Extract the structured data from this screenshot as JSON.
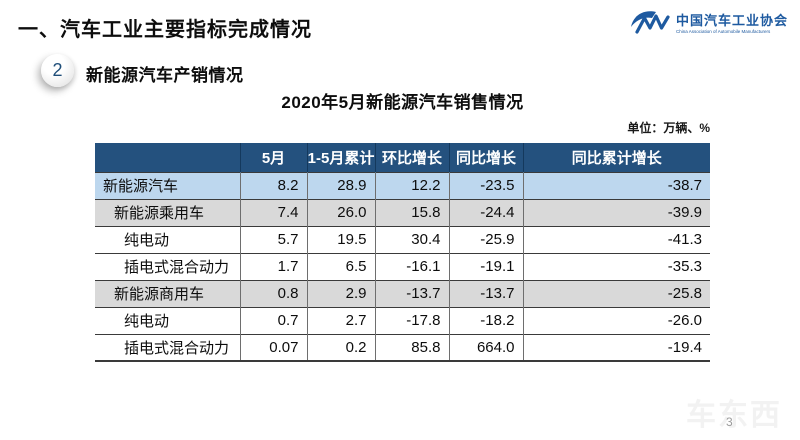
{
  "page": {
    "main_title": "一、汽车工业主要指标完成情况",
    "section_badge": "2",
    "section_title": "新能源汽车产销情况",
    "watermark": "车东西",
    "page_number": "3"
  },
  "logo": {
    "name_cn": "中国汽车工业协会",
    "name_en": "China Association of Automobile Manufacturers"
  },
  "table": {
    "title": "2020年5月新能源汽车销售情况",
    "unit_label": "单位：万辆、%",
    "columns": [
      "",
      "5月",
      "1-5月累计",
      "环比增长",
      "同比增长",
      "同比累计增长"
    ],
    "rows": [
      {
        "label": "新能源汽车",
        "indent": 0,
        "bg": "blue",
        "values": [
          "8.2",
          "28.9",
          "12.2",
          "-23.5",
          "-38.7"
        ]
      },
      {
        "label": "新能源乘用车",
        "indent": 1,
        "bg": "gray",
        "values": [
          "7.4",
          "26.0",
          "15.8",
          "-24.4",
          "-39.9"
        ]
      },
      {
        "label": "纯电动",
        "indent": 2,
        "bg": "white",
        "values": [
          "5.7",
          "19.5",
          "30.4",
          "-25.9",
          "-41.3"
        ]
      },
      {
        "label": "插电式混合动力",
        "indent": 2,
        "bg": "white",
        "values": [
          "1.7",
          "6.5",
          "-16.1",
          "-19.1",
          "-35.3"
        ]
      },
      {
        "label": "新能源商用车",
        "indent": 1,
        "bg": "gray",
        "values": [
          "0.8",
          "2.9",
          "-13.7",
          "-13.7",
          "-25.8"
        ]
      },
      {
        "label": "纯电动",
        "indent": 2,
        "bg": "white",
        "values": [
          "0.7",
          "2.7",
          "-17.8",
          "-18.2",
          "-26.0"
        ]
      },
      {
        "label": "插电式混合动力",
        "indent": 2,
        "bg": "white",
        "values": [
          "0.07",
          "0.2",
          "85.8",
          "664.0",
          "-19.4"
        ]
      }
    ]
  },
  "chart_data": {
    "type": "table",
    "title": "2020年5月新能源汽车销售情况",
    "unit": "万辆、%",
    "columns": [
      "5月",
      "1-5月累计",
      "环比增长",
      "同比增长",
      "同比累计增长"
    ],
    "rows": [
      {
        "category": "新能源汽车",
        "values": [
          8.2,
          28.9,
          12.2,
          -23.5,
          -38.7
        ]
      },
      {
        "category": "新能源乘用车",
        "values": [
          7.4,
          26.0,
          15.8,
          -24.4,
          -39.9
        ]
      },
      {
        "category": "新能源乘用车-纯电动",
        "values": [
          5.7,
          19.5,
          30.4,
          -25.9,
          -41.3
        ]
      },
      {
        "category": "新能源乘用车-插电式混合动力",
        "values": [
          1.7,
          6.5,
          -16.1,
          -19.1,
          -35.3
        ]
      },
      {
        "category": "新能源商用车",
        "values": [
          0.8,
          2.9,
          -13.7,
          -13.7,
          -25.8
        ]
      },
      {
        "category": "新能源商用车-纯电动",
        "values": [
          0.7,
          2.7,
          -17.8,
          -18.2,
          -26.0
        ]
      },
      {
        "category": "新能源商用车-插电式混合动力",
        "values": [
          0.07,
          0.2,
          85.8,
          664.0,
          -19.4
        ]
      }
    ]
  },
  "colors": {
    "header_bg": "#24517E",
    "row_highlight_blue": "#BDD7EE",
    "row_gray": "#D9D9D9",
    "brand_blue": "#1E5AA0"
  }
}
